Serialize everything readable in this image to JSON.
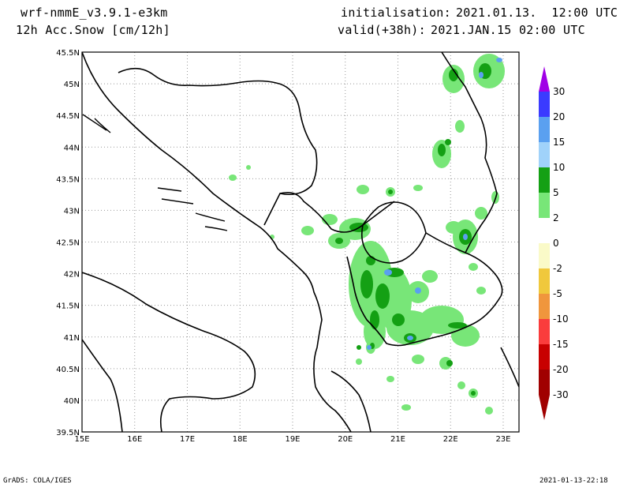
{
  "header": {
    "model": "wrf-nmmE_v3.9.1-e3km",
    "variable": "12h Acc.Snow [cm/12h]",
    "init_label": "initialisation:",
    "init_value": "2021.01.13.  12:00 UTC",
    "valid_label": "valid(+38h):",
    "valid_value": "2021.JAN.15 02:00 UTC"
  },
  "axes": {
    "x_ticks": [
      "15E",
      "16E",
      "17E",
      "18E",
      "19E",
      "20E",
      "21E",
      "22E",
      "23E"
    ],
    "y_ticks": [
      "45.5N",
      "45N",
      "44.5N",
      "44N",
      "43.5N",
      "43N",
      "42.5N",
      "42N",
      "41.5N",
      "41N",
      "40.5N",
      "40N",
      "39.5N"
    ],
    "lon_range": [
      15,
      23.3
    ],
    "lat_range": [
      39.5,
      45.5
    ],
    "grid": true
  },
  "colorbar": {
    "labels": [
      "30",
      "20",
      "15",
      "10",
      "5",
      "2",
      "0",
      "-2",
      "-5",
      "-10",
      "-15",
      "-20",
      "-30"
    ],
    "colors": [
      "#a000e6",
      "#3b3bff",
      "#5aa0f0",
      "#a0d2fa",
      "#14a014",
      "#78e678",
      "#ffffff",
      "#fafac8",
      "#f0c83c",
      "#f0963c",
      "#fa3c3c",
      "#c80000",
      "#a00000"
    ]
  },
  "footer": {
    "left": "GrADS: COLA/IGES",
    "right": "2021-01-13-22:18"
  }
}
